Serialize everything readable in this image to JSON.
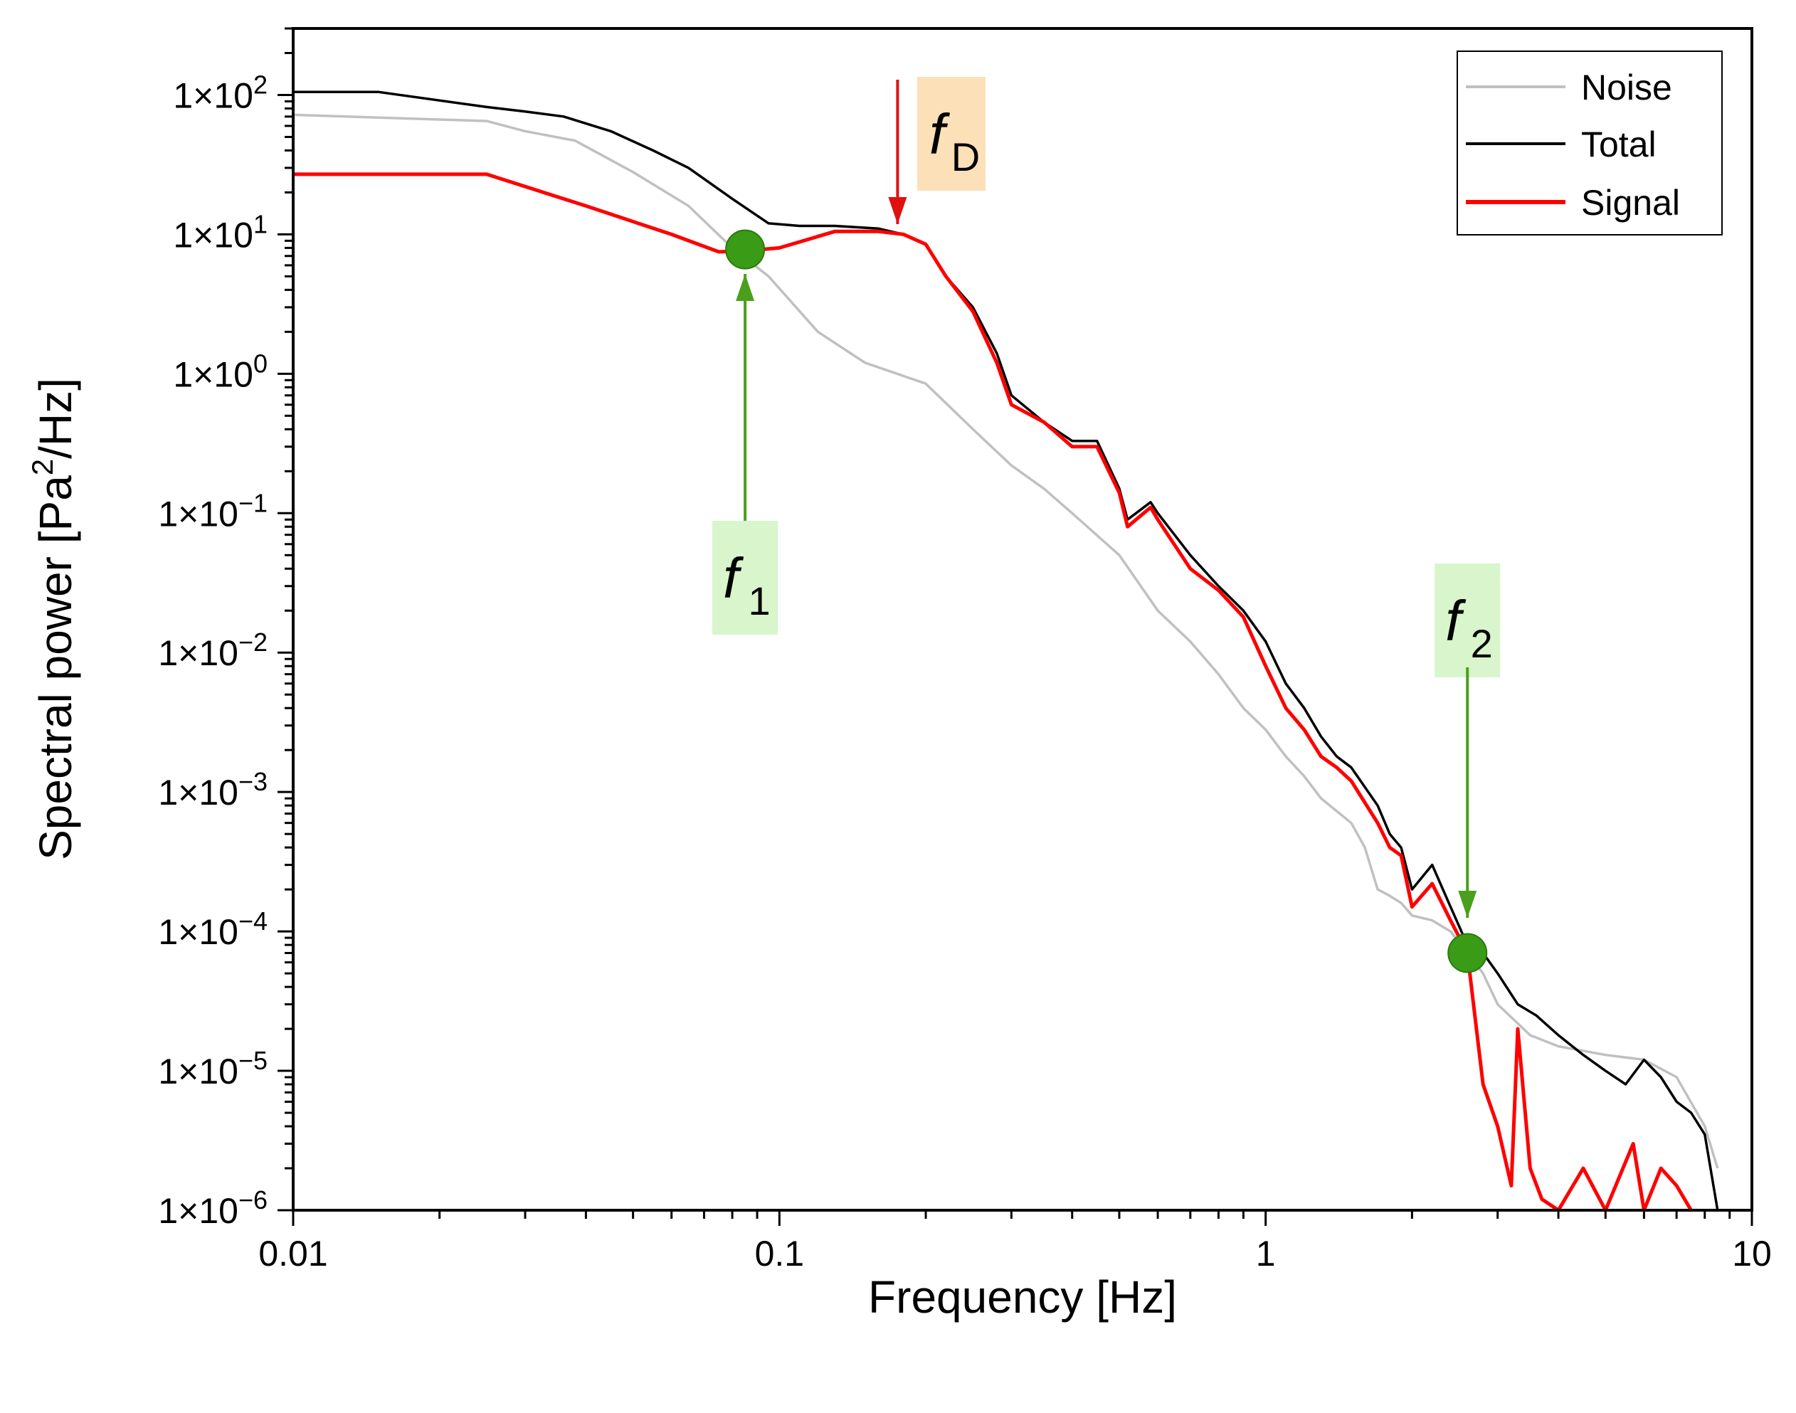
{
  "chart_data": {
    "type": "line",
    "xscale": "log",
    "yscale": "log",
    "xlim": [
      0.01,
      10
    ],
    "ylim": [
      1e-06,
      300
    ],
    "xlabel": "Frequency [Hz]",
    "ylabel_prefix": "Spectral power [Pa",
    "ylabel_sup": "2",
    "ylabel_suffix": "/Hz]",
    "x_ticks": [
      {
        "value": 0.01,
        "label": "0.01"
      },
      {
        "value": 0.1,
        "label": "0.1"
      },
      {
        "value": 1,
        "label": "1"
      },
      {
        "value": 10,
        "label": "10"
      }
    ],
    "y_ticks": [
      {
        "value": 100,
        "mant": "1×10",
        "exp": "2"
      },
      {
        "value": 10,
        "mant": "1×10",
        "exp": "1"
      },
      {
        "value": 1,
        "mant": "1×10",
        "exp": "0"
      },
      {
        "value": 0.1,
        "mant": "1×10",
        "exp": "−1"
      },
      {
        "value": 0.01,
        "mant": "1×10",
        "exp": "−2"
      },
      {
        "value": 0.001,
        "mant": "1×10",
        "exp": "−3"
      },
      {
        "value": 0.0001,
        "mant": "1×10",
        "exp": "−4"
      },
      {
        "value": 1e-05,
        "mant": "1×10",
        "exp": "−5"
      },
      {
        "value": 1e-06,
        "mant": "1×10",
        "exp": "−6"
      }
    ],
    "legend_position": "top-right",
    "series": [
      {
        "name": "Noise",
        "color": "#c0c0c0",
        "points": [
          [
            0.01,
            72
          ],
          [
            0.025,
            65
          ],
          [
            0.03,
            55
          ],
          [
            0.038,
            47
          ],
          [
            0.05,
            28
          ],
          [
            0.065,
            16
          ],
          [
            0.08,
            8
          ],
          [
            0.095,
            5
          ],
          [
            0.12,
            2
          ],
          [
            0.15,
            1.2
          ],
          [
            0.2,
            0.85
          ],
          [
            0.25,
            0.4
          ],
          [
            0.3,
            0.22
          ],
          [
            0.35,
            0.15
          ],
          [
            0.4,
            0.1
          ],
          [
            0.5,
            0.05
          ],
          [
            0.6,
            0.02
          ],
          [
            0.7,
            0.012
          ],
          [
            0.8,
            0.007
          ],
          [
            0.9,
            0.004
          ],
          [
            1.0,
            0.0028
          ],
          [
            1.1,
            0.0018
          ],
          [
            1.2,
            0.0013
          ],
          [
            1.3,
            0.0009
          ],
          [
            1.5,
            0.0006
          ],
          [
            1.6,
            0.0004
          ],
          [
            1.7,
            0.0002
          ],
          [
            1.8,
            0.00018
          ],
          [
            1.9,
            0.00016
          ],
          [
            2.0,
            0.00013
          ],
          [
            2.2,
            0.00012
          ],
          [
            2.4,
            0.0001
          ],
          [
            2.6,
            7e-05
          ],
          [
            2.8,
            5e-05
          ],
          [
            3.0,
            3e-05
          ],
          [
            3.5,
            1.8e-05
          ],
          [
            4,
            1.5e-05
          ],
          [
            5,
            1.3e-05
          ],
          [
            6,
            1.2e-05
          ],
          [
            7,
            9e-06
          ],
          [
            8,
            4e-06
          ],
          [
            8.5,
            2e-06
          ]
        ]
      },
      {
        "name": "Total",
        "color": "#000000",
        "points": [
          [
            0.01,
            105
          ],
          [
            0.015,
            105
          ],
          [
            0.025,
            82
          ],
          [
            0.03,
            76
          ],
          [
            0.036,
            70
          ],
          [
            0.045,
            55
          ],
          [
            0.055,
            40
          ],
          [
            0.065,
            30
          ],
          [
            0.08,
            18
          ],
          [
            0.095,
            12
          ],
          [
            0.11,
            11.5
          ],
          [
            0.13,
            11.5
          ],
          [
            0.16,
            11
          ],
          [
            0.18,
            10
          ],
          [
            0.2,
            8.5
          ],
          [
            0.22,
            5
          ],
          [
            0.25,
            3.0
          ],
          [
            0.28,
            1.4
          ],
          [
            0.3,
            0.7
          ],
          [
            0.35,
            0.45
          ],
          [
            0.4,
            0.33
          ],
          [
            0.45,
            0.33
          ],
          [
            0.5,
            0.15
          ],
          [
            0.52,
            0.09
          ],
          [
            0.58,
            0.12
          ],
          [
            0.6,
            0.1
          ],
          [
            0.7,
            0.05
          ],
          [
            0.8,
            0.03
          ],
          [
            0.9,
            0.02
          ],
          [
            1.0,
            0.012
          ],
          [
            1.1,
            0.006
          ],
          [
            1.2,
            0.004
          ],
          [
            1.3,
            0.0025
          ],
          [
            1.4,
            0.0018
          ],
          [
            1.5,
            0.0015
          ],
          [
            1.7,
            0.0008
          ],
          [
            1.8,
            0.0005
          ],
          [
            1.9,
            0.0004
          ],
          [
            2.0,
            0.0002
          ],
          [
            2.2,
            0.0003
          ],
          [
            2.4,
            0.00015
          ],
          [
            2.6,
            8e-05
          ],
          [
            2.8,
            7e-05
          ],
          [
            3.0,
            5e-05
          ],
          [
            3.3,
            3e-05
          ],
          [
            3.6,
            2.5e-05
          ],
          [
            4,
            1.8e-05
          ],
          [
            4.5,
            1.3e-05
          ],
          [
            5,
            1e-05
          ],
          [
            5.5,
            8e-06
          ],
          [
            6,
            1.2e-05
          ],
          [
            6.5,
            9e-06
          ],
          [
            7,
            6e-06
          ],
          [
            7.5,
            5e-06
          ],
          [
            8,
            3.5e-06
          ],
          [
            8.5,
            1e-06
          ]
        ]
      },
      {
        "name": "Signal",
        "color": "#ff0000",
        "points": [
          [
            0.01,
            27
          ],
          [
            0.025,
            27
          ],
          [
            0.04,
            16
          ],
          [
            0.06,
            10
          ],
          [
            0.075,
            7.5
          ],
          [
            0.085,
            7.6
          ],
          [
            0.1,
            8
          ],
          [
            0.13,
            10.5
          ],
          [
            0.16,
            10.5
          ],
          [
            0.18,
            10
          ],
          [
            0.2,
            8.5
          ],
          [
            0.22,
            5
          ],
          [
            0.25,
            2.8
          ],
          [
            0.28,
            1.2
          ],
          [
            0.3,
            0.6
          ],
          [
            0.35,
            0.45
          ],
          [
            0.4,
            0.3
          ],
          [
            0.45,
            0.3
          ],
          [
            0.5,
            0.14
          ],
          [
            0.52,
            0.08
          ],
          [
            0.58,
            0.11
          ],
          [
            0.6,
            0.09
          ],
          [
            0.7,
            0.04
          ],
          [
            0.8,
            0.028
          ],
          [
            0.9,
            0.018
          ],
          [
            1.0,
            0.008
          ],
          [
            1.1,
            0.004
          ],
          [
            1.2,
            0.0028
          ],
          [
            1.3,
            0.0018
          ],
          [
            1.4,
            0.0015
          ],
          [
            1.5,
            0.0012
          ],
          [
            1.7,
            0.0006
          ],
          [
            1.8,
            0.0004
          ],
          [
            1.9,
            0.00035
          ],
          [
            2.0,
            0.00015
          ],
          [
            2.2,
            0.00022
          ],
          [
            2.4,
            0.00012
          ],
          [
            2.6,
            7e-05
          ],
          [
            2.8,
            8e-06
          ],
          [
            3.0,
            4e-06
          ],
          [
            3.2,
            1.5e-06
          ],
          [
            3.3,
            2e-05
          ],
          [
            3.5,
            2e-06
          ],
          [
            3.7,
            1.2e-06
          ],
          [
            4.0,
            1e-06
          ],
          [
            4.5,
            2e-06
          ],
          [
            5,
            1e-06
          ],
          [
            5.7,
            3e-06
          ],
          [
            6,
            1e-06
          ],
          [
            6.5,
            2e-06
          ],
          [
            7,
            1.5e-06
          ],
          [
            7.5,
            1e-06
          ]
        ]
      }
    ],
    "markers": [
      {
        "name": "f1-point",
        "x": 0.085,
        "y": 7.8,
        "color": "#3a9b16"
      },
      {
        "name": "f2-point",
        "x": 2.6,
        "y": 7e-05,
        "color": "#3a9b16"
      }
    ],
    "annotations": [
      {
        "name": "f1",
        "letter": "f",
        "sub": "1",
        "box_color": "#d8f5cc",
        "arrow_color": "#4aa01c",
        "x": 0.085
      },
      {
        "name": "f2",
        "letter": "f",
        "sub": "2",
        "box_color": "#d8f5cc",
        "arrow_color": "#4aa01c",
        "x": 2.6
      },
      {
        "name": "fD",
        "letter": "f",
        "sub": "D",
        "box_color": "#fce0b8",
        "arrow_color": "#e01010",
        "x": 0.175
      }
    ]
  }
}
